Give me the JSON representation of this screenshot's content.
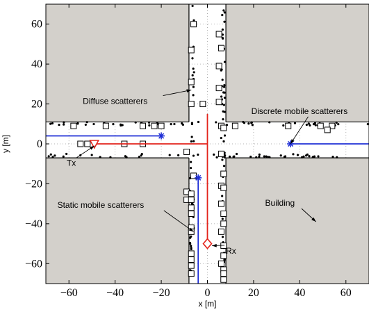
{
  "chart_data": {
    "type": "scatter",
    "title": "",
    "xlabel": "x [m]",
    "ylabel": "y [m]",
    "xlim": [
      -70,
      70
    ],
    "ylim": [
      -70,
      70
    ],
    "xticks": [
      -60,
      -40,
      -20,
      0,
      20,
      40,
      60
    ],
    "yticks": [
      -60,
      -40,
      -20,
      0,
      20,
      40,
      60
    ],
    "xtick_labels": [
      "−60",
      "−40",
      "−20",
      "0",
      "20",
      "40",
      "60"
    ],
    "ytick_labels": [
      "−60",
      "−40",
      "−20",
      "0",
      "20",
      "40",
      "60"
    ],
    "grid": true,
    "colors": {
      "building": "#d3d0cb",
      "tx_path": "#e3231b",
      "rx_path": "#e3231b",
      "mobile_path": "#1f2fd6",
      "point": "#000000"
    },
    "buildings": [
      {
        "x": [
          -70,
          -8
        ],
        "y": [
          11,
          70
        ]
      },
      {
        "x": [
          8,
          70
        ],
        "y": [
          11,
          70
        ]
      },
      {
        "x": [
          -70,
          -8
        ],
        "y": [
          -70,
          -7
        ]
      },
      {
        "x": [
          8,
          70
        ],
        "y": [
          -70,
          -7
        ]
      }
    ],
    "series": [
      {
        "name": "Tx",
        "marker": "triangle",
        "x": [
          -49,
          0
        ],
        "y": [
          0,
          0
        ]
      },
      {
        "name": "Rx",
        "marker": "diamond",
        "x": [
          0,
          0
        ],
        "y": [
          -50,
          15
        ]
      },
      {
        "name": "Discrete mobile scatterers",
        "marker": "star",
        "x": [
          36,
          70
        ],
        "y": [
          0,
          0
        ]
      },
      {
        "name": "",
        "marker": "star",
        "x": [
          -20,
          -70
        ],
        "y": [
          4,
          4
        ]
      },
      {
        "name": "Static mobile scatterers",
        "marker": "star",
        "x": [
          -4,
          -4
        ],
        "y": [
          -17,
          -70
        ]
      }
    ],
    "static_scatterers": [
      [
        -6,
        60
      ],
      [
        5,
        55
      ],
      [
        -7,
        47
      ],
      [
        6,
        48
      ],
      [
        5,
        39
      ],
      [
        -7,
        31
      ],
      [
        5,
        28
      ],
      [
        5,
        21
      ],
      [
        -7,
        20
      ],
      [
        -2,
        20
      ],
      [
        -58,
        9
      ],
      [
        -44,
        9
      ],
      [
        -23,
        9
      ],
      [
        -28,
        9
      ],
      [
        -20,
        9
      ],
      [
        6,
        9
      ],
      [
        12,
        9
      ],
      [
        35,
        9
      ],
      [
        49,
        9
      ],
      [
        54,
        9
      ],
      [
        7,
        8
      ],
      [
        52,
        7
      ],
      [
        -52,
        0
      ],
      [
        -55,
        0
      ],
      [
        -36,
        0
      ],
      [
        -28,
        0
      ],
      [
        -9,
        -4
      ],
      [
        6,
        -5
      ],
      [
        -6,
        -16
      ],
      [
        7,
        -15
      ],
      [
        6,
        -21
      ],
      [
        -7,
        -32
      ],
      [
        -7,
        -35
      ],
      [
        -7,
        -42
      ],
      [
        7,
        -22
      ],
      [
        6,
        -30
      ],
      [
        7,
        -35
      ],
      [
        7,
        -40
      ],
      [
        6,
        -44
      ],
      [
        7,
        -51
      ],
      [
        7,
        -56
      ],
      [
        -7,
        -44
      ],
      [
        -7,
        -55
      ],
      [
        -7,
        -58
      ],
      [
        6,
        -60
      ],
      [
        -7,
        -61
      ],
      [
        7,
        -63
      ],
      [
        7,
        -68
      ],
      [
        -9,
        -24
      ],
      [
        -9,
        -28
      ],
      [
        -7,
        -25
      ],
      [
        -7,
        -28
      ],
      [
        -7,
        -65
      ],
      [
        7,
        -65
      ]
    ],
    "annotations": [
      {
        "text": "Diffuse scatterers",
        "x": -54,
        "y": 20,
        "arrow_to": [
          -7,
          27
        ]
      },
      {
        "text": "Discrete mobile scatterers",
        "x": 19,
        "y": 15,
        "arrow_to": [
          36,
          0
        ]
      },
      {
        "text": "Tx",
        "x": -61,
        "y": -11,
        "arrow_to": [
          -49,
          -1
        ]
      },
      {
        "text": "Static mobile scatterers",
        "x": -65,
        "y": -32,
        "arrow_to": [
          -6,
          -44
        ]
      },
      {
        "text": "Building",
        "x": 25,
        "y": -31,
        "arrow_to": [
          47,
          -39
        ]
      },
      {
        "text": "Rx",
        "x": 8,
        "y": -55,
        "arrow_to": [
          2,
          -51
        ]
      }
    ]
  }
}
